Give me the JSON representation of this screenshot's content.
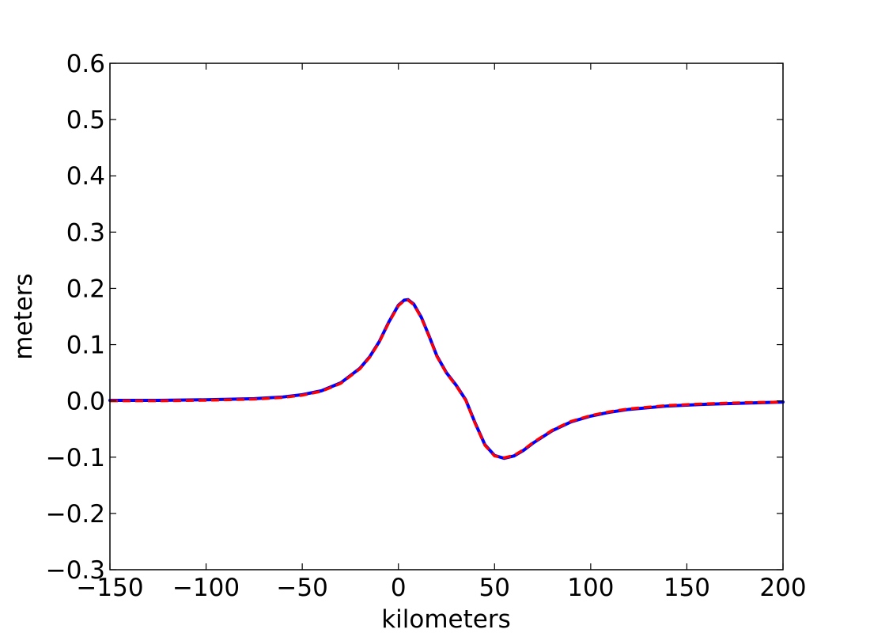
{
  "chart_data": {
    "type": "line",
    "title": "",
    "xlabel": "kilometers",
    "ylabel": "meters",
    "xlim": [
      -150,
      200
    ],
    "ylim": [
      -0.3,
      0.6
    ],
    "x_ticks": [
      -150,
      -100,
      -50,
      0,
      50,
      100,
      150,
      200
    ],
    "x_tick_labels": [
      "−150",
      "−100",
      "−50",
      "0",
      "50",
      "100",
      "150",
      "200"
    ],
    "y_ticks": [
      -0.3,
      -0.2,
      -0.1,
      0.0,
      0.1,
      0.2,
      0.3,
      0.4,
      0.5,
      0.6
    ],
    "y_tick_labels": [
      "−0.3",
      "−0.2",
      "−0.1",
      "0.0",
      "0.1",
      "0.2",
      "0.3",
      "0.4",
      "0.5",
      "0.6"
    ],
    "grid": false,
    "legend": "none",
    "series": [
      {
        "color": "#0000ff",
        "style": "solid",
        "x": [
          -150,
          -125,
          -100,
          -75,
          -60,
          -50,
          -40,
          -30,
          -20,
          -15,
          -10,
          -5,
          0,
          3,
          5,
          8,
          12,
          16,
          20,
          25,
          30,
          35,
          40,
          45,
          50,
          55,
          60,
          65,
          70,
          80,
          90,
          100,
          110,
          120,
          140,
          160,
          180,
          200
        ],
        "y": [
          0.001,
          0.001,
          0.002,
          0.004,
          0.007,
          0.011,
          0.018,
          0.032,
          0.058,
          0.078,
          0.105,
          0.14,
          0.17,
          0.179,
          0.18,
          0.172,
          0.148,
          0.115,
          0.08,
          0.05,
          0.028,
          0.002,
          -0.04,
          -0.078,
          -0.097,
          -0.102,
          -0.098,
          -0.088,
          -0.075,
          -0.053,
          -0.037,
          -0.027,
          -0.02,
          -0.015,
          -0.009,
          -0.006,
          -0.004,
          -0.002
        ]
      },
      {
        "color": "#ff0000",
        "style": "dashed",
        "x": [
          -150,
          -125,
          -100,
          -75,
          -60,
          -50,
          -40,
          -30,
          -20,
          -15,
          -10,
          -5,
          0,
          3,
          5,
          8,
          12,
          16,
          20,
          25,
          30,
          35,
          40,
          45,
          50,
          55,
          60,
          65,
          70,
          80,
          90,
          100,
          110,
          120,
          140,
          160,
          180,
          200
        ],
        "y": [
          0.0,
          0.0,
          0.001,
          0.003,
          0.006,
          0.01,
          0.017,
          0.031,
          0.057,
          0.077,
          0.104,
          0.139,
          0.169,
          0.178,
          0.179,
          0.171,
          0.147,
          0.114,
          0.079,
          0.049,
          0.027,
          0.001,
          -0.041,
          -0.079,
          -0.098,
          -0.101,
          -0.097,
          -0.087,
          -0.074,
          -0.052,
          -0.036,
          -0.026,
          -0.019,
          -0.014,
          -0.008,
          -0.005,
          -0.003,
          -0.002
        ]
      }
    ]
  }
}
